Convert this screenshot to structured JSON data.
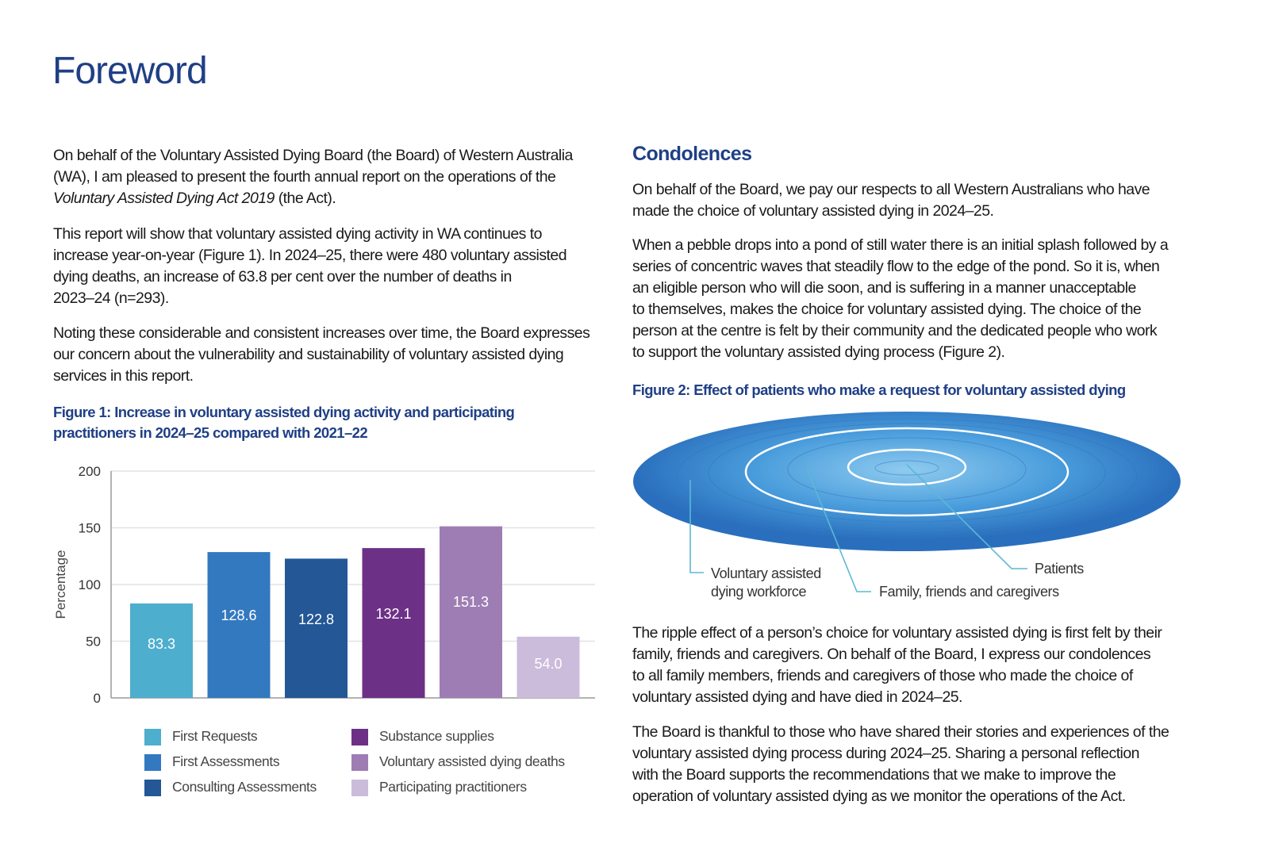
{
  "title": "Foreword",
  "left": {
    "p1": [
      "On behalf of the Voluntary Assisted Dying Board (the Board) of Western Australia",
      "(WA), I am pleased to present the fourth annual report on the operations of the"
    ],
    "p1_italic": "Voluntary Assisted Dying Act 2019",
    "p1_rest": " (the Act).",
    "p2": [
      "This report will show that voluntary assisted dying activity in WA continues to",
      "increase year-on-year (Figure 1). In 2024–25, there were 480 voluntary assisted",
      "dying deaths, an increase of 63.8 per cent over the number of deaths in",
      "2023–24 (n=293)."
    ],
    "p3": [
      "Noting these considerable and consistent increases over time, the Board expresses",
      "our concern about the vulnerability and sustainability of voluntary assisted dying",
      "services in this report."
    ],
    "fig1_title": [
      "Figure 1: Increase in voluntary assisted dying activity and participating",
      "practitioners in 2024–25 compared with 2021–22"
    ]
  },
  "chart_data": {
    "type": "bar",
    "title": "Figure 1: Increase in voluntary assisted dying activity and participating practitioners in 2024–25 compared with 2021–22",
    "categories": [
      "First Requests",
      "First Assessments",
      "Consulting Assessments",
      "Substance supplies",
      "Voluntary assisted dying deaths",
      "Participating practitioners"
    ],
    "values": [
      83.3,
      128.6,
      122.8,
      132.1,
      151.3,
      54.0
    ],
    "labels": [
      "83.3",
      "128.6",
      "122.8",
      "132.1",
      "151.3",
      "54.0"
    ],
    "colors": [
      "#4eaecd",
      "#3379c0",
      "#235796",
      "#6d3087",
      "#9e7db4",
      "#cbbcdb"
    ],
    "xlabel": "",
    "ylabel": "Percentage",
    "ylim": [
      0,
      200
    ],
    "yticks": [
      "0",
      "50",
      "100",
      "150",
      "200"
    ],
    "grid": true,
    "legend": "bottom"
  },
  "right": {
    "heading": "Condolences",
    "p1": [
      "On behalf of the Board, we pay our respects to all Western Australians who have",
      "made the choice of voluntary assisted dying in 2024–25."
    ],
    "p2": [
      "When a pebble drops into a pond of still water there is an initial splash followed by a",
      "series of concentric waves that steadily flow to the edge of the pond. So it is, when",
      "an eligible person who will die soon, and is suffering in a manner unacceptable",
      "to themselves, makes the choice for voluntary assisted dying. The choice of the",
      "person at the centre is felt by their community and the dedicated people who work",
      "to support the voluntary assisted dying process (Figure 2)."
    ],
    "fig2_title": "Figure 2: Effect of patients who make a request for voluntary assisted dying",
    "fig2_labels": {
      "workforce": [
        "Voluntary assisted",
        "dying workforce"
      ],
      "family": "Family, friends and caregivers",
      "patients": "Patients"
    },
    "p3": [
      "The ripple effect of a person’s choice for voluntary assisted dying is first felt by their",
      "family, friends and caregivers. On behalf of the Board, I express our condolences",
      "to all family members, friends and caregivers of those who made the choice of",
      "voluntary assisted dying and have died in 2024–25."
    ],
    "p4": [
      "The Board is thankful to those who have shared their stories and experiences of the",
      "voluntary assisted dying process during 2024–25. Sharing a personal reflection",
      "with the Board supports the recommendations that we make to improve the",
      "operation of voluntary assisted dying as we monitor the operations of the Act."
    ]
  }
}
